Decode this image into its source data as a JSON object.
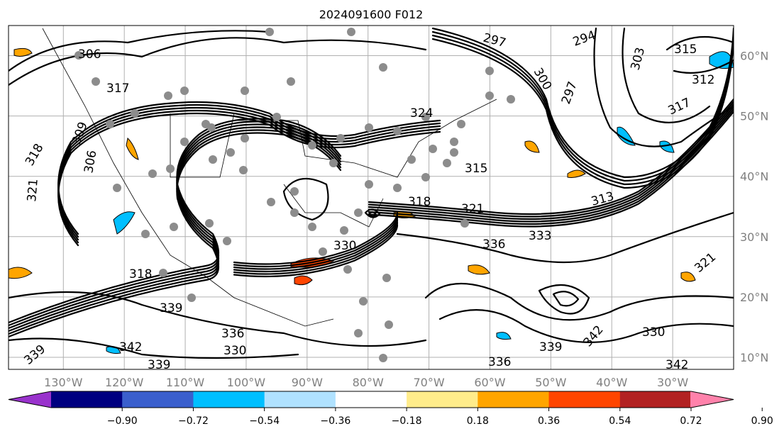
{
  "title": "2024091600 F012",
  "map": {
    "extent_deg": {
      "lon_west": -139,
      "lon_east": -20,
      "lat_south": 8,
      "lat_north": 65
    },
    "lon_ticks": [
      {
        "value": -130,
        "label": "130°W"
      },
      {
        "value": -120,
        "label": "120°W"
      },
      {
        "value": -110,
        "label": "110°W"
      },
      {
        "value": -100,
        "label": "100°W"
      },
      {
        "value": -90,
        "label": "90°W"
      },
      {
        "value": -80,
        "label": "80°W"
      },
      {
        "value": -70,
        "label": "70°W"
      },
      {
        "value": -60,
        "label": "60°W"
      },
      {
        "value": -50,
        "label": "50°W"
      },
      {
        "value": -40,
        "label": "40°W"
      },
      {
        "value": -30,
        "label": "30°W"
      }
    ],
    "lat_ticks": [
      {
        "value": 60,
        "label": "60°N"
      },
      {
        "value": 50,
        "label": "50°N"
      },
      {
        "value": 40,
        "label": "40°N"
      },
      {
        "value": 30,
        "label": "30°N"
      },
      {
        "value": 20,
        "label": "20°N"
      },
      {
        "value": 10,
        "label": "10°N"
      }
    ],
    "contour_labels": [
      "306",
      "317",
      "318",
      "309",
      "306",
      "321",
      "324",
      "315",
      "318",
      "321",
      "330",
      "333",
      "336",
      "318",
      "339",
      "342",
      "336",
      "339",
      "330",
      "339",
      "336",
      "342",
      "297",
      "294",
      "300",
      "297",
      "303",
      "315",
      "312",
      "317",
      "313",
      "321",
      "330",
      "342",
      "339"
    ]
  },
  "colorbar": {
    "colors": [
      "#9932CC",
      "#000080",
      "#3A5FCD",
      "#00BFFF",
      "#B0E2FF",
      "#FFFFFF",
      "#FFEC8B",
      "#FFA500",
      "#FF4500",
      "#B22222",
      "#FF82AB"
    ],
    "ticks": [
      "−0.90",
      "−0.72",
      "−0.54",
      "−0.36",
      "−0.18",
      "0.18",
      "0.36",
      "0.54",
      "0.72",
      "0.90"
    ]
  }
}
